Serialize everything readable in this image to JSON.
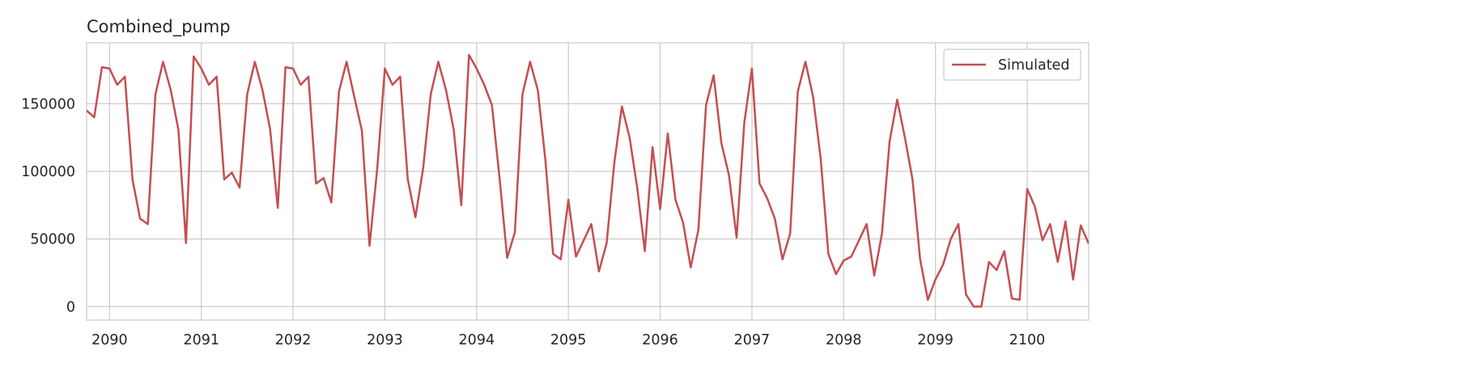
{
  "chart_data": {
    "type": "line",
    "title": "Combined_pump",
    "xlabel": "",
    "ylabel": "",
    "xlim": [
      2089.75,
      2100.67
    ],
    "ylim": [
      -10000,
      195000
    ],
    "x_ticks": [
      2090,
      2091,
      2092,
      2093,
      2094,
      2095,
      2096,
      2097,
      2098,
      2099,
      2100
    ],
    "x_tick_labels": [
      "2090",
      "2091",
      "2092",
      "2093",
      "2094",
      "2095",
      "2096",
      "2097",
      "2098",
      "2099",
      "2100"
    ],
    "y_ticks": [
      0,
      50000,
      100000,
      150000
    ],
    "y_tick_labels": [
      "0",
      "50000",
      "100000",
      "150000"
    ],
    "grid": true,
    "legend_position": "upper right",
    "series": [
      {
        "name": "Simulated",
        "color": "#c44e52",
        "x": [
          2089.75,
          2089.833,
          2089.917,
          2090.0,
          2090.083,
          2090.167,
          2090.25,
          2090.333,
          2090.417,
          2090.5,
          2090.583,
          2090.667,
          2090.75,
          2090.833,
          2090.917,
          2091.0,
          2091.083,
          2091.167,
          2091.25,
          2091.333,
          2091.417,
          2091.5,
          2091.583,
          2091.667,
          2091.75,
          2091.833,
          2091.917,
          2092.0,
          2092.083,
          2092.167,
          2092.25,
          2092.333,
          2092.417,
          2092.5,
          2092.583,
          2092.667,
          2092.75,
          2092.833,
          2092.917,
          2093.0,
          2093.083,
          2093.167,
          2093.25,
          2093.333,
          2093.417,
          2093.5,
          2093.583,
          2093.667,
          2093.75,
          2093.833,
          2093.917,
          2094.0,
          2094.083,
          2094.167,
          2094.25,
          2094.333,
          2094.417,
          2094.5,
          2094.583,
          2094.667,
          2094.75,
          2094.833,
          2094.917,
          2095.0,
          2095.083,
          2095.167,
          2095.25,
          2095.333,
          2095.417,
          2095.5,
          2095.583,
          2095.667,
          2095.75,
          2095.833,
          2095.917,
          2096.0,
          2096.083,
          2096.167,
          2096.25,
          2096.333,
          2096.417,
          2096.5,
          2096.583,
          2096.667,
          2096.75,
          2096.833,
          2096.917,
          2097.0,
          2097.083,
          2097.167,
          2097.25,
          2097.333,
          2097.417,
          2097.5,
          2097.583,
          2097.667,
          2097.75,
          2097.833,
          2097.917,
          2098.0,
          2098.083,
          2098.167,
          2098.25,
          2098.333,
          2098.417,
          2098.5,
          2098.583,
          2098.667,
          2098.75,
          2098.833,
          2098.917,
          2099.0,
          2099.083,
          2099.167,
          2099.25,
          2099.333,
          2099.417,
          2099.5,
          2099.583,
          2099.667,
          2099.75,
          2099.833,
          2099.917,
          2100.0,
          2100.083,
          2100.167,
          2100.25,
          2100.333,
          2100.417,
          2100.5,
          2100.583,
          2100.667
        ],
        "y": [
          145000,
          140000,
          177000,
          176000,
          164000,
          170000,
          94000,
          65000,
          61000,
          157000,
          181000,
          160000,
          131000,
          47000,
          185000,
          176000,
          164000,
          170000,
          94000,
          99000,
          88000,
          157000,
          181000,
          160000,
          131000,
          73000,
          177000,
          176000,
          164000,
          170000,
          91000,
          95000,
          77000,
          159000,
          181000,
          155000,
          130000,
          45000,
          102000,
          176000,
          164000,
          170000,
          94000,
          66000,
          102000,
          157000,
          181000,
          160000,
          131000,
          75000,
          186000,
          176000,
          164000,
          149000,
          95000,
          36000,
          55000,
          157000,
          181000,
          160000,
          108000,
          39000,
          35000,
          79000,
          37000,
          49000,
          61000,
          26000,
          47000,
          106000,
          148000,
          125000,
          88000,
          41000,
          118000,
          72000,
          128000,
          79000,
          62000,
          29000,
          57000,
          149000,
          171000,
          121000,
          97000,
          51000,
          136000,
          176000,
          91000,
          80000,
          65000,
          35000,
          54000,
          159000,
          181000,
          155000,
          109000,
          39000,
          24000,
          34000,
          37000,
          49000,
          61000,
          23000,
          54000,
          122000,
          153000,
          125000,
          94000,
          35000,
          5000,
          20000,
          31000,
          50000,
          61000,
          9000,
          0,
          0,
          33000,
          27000,
          41000,
          6000,
          5000,
          87000,
          74000,
          49000,
          61000,
          33000,
          63000,
          20000,
          60000,
          47000
        ]
      }
    ]
  }
}
